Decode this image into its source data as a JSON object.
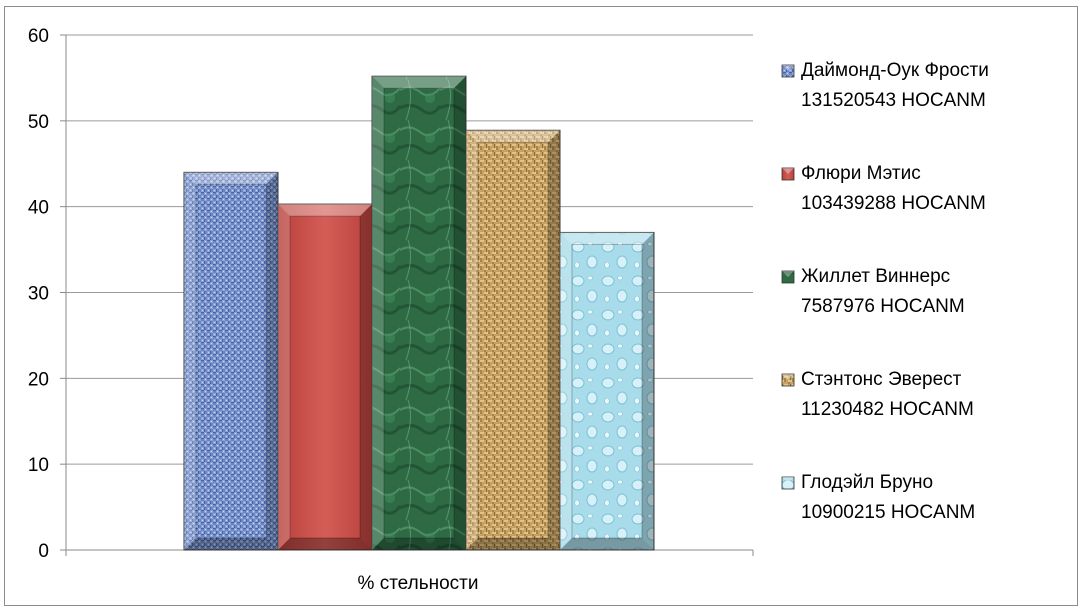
{
  "chart_data": {
    "type": "bar",
    "categories": [
      "% стельности"
    ],
    "xlabel": "% стельности",
    "ylim": [
      0,
      60
    ],
    "yticks": [
      0,
      10,
      20,
      30,
      40,
      50,
      60
    ],
    "grid": true,
    "legend_position": "right",
    "series": [
      {
        "name": "Даймонд-Оук Фрости 131520543 HOCANM",
        "label_lines": [
          "Даймонд-Оук Фрости",
          "131520543 HOCANM"
        ],
        "values": [
          44
        ],
        "color": "#5b78b8",
        "pattern": "woven-blue"
      },
      {
        "name": "Флюри Мэтис 103439288 HOCANM",
        "label_lines": [
          "Флюри Мэтис",
          "103439288 HOCANM"
        ],
        "values": [
          40.3
        ],
        "color": "#c9504a",
        "pattern": "solid-red"
      },
      {
        "name": "Жиллет Виннерс 7587976 HOCANM",
        "label_lines": [
          "Жиллет Виннерс",
          "7587976 HOCANM"
        ],
        "values": [
          55.2
        ],
        "color": "#2d6e45",
        "pattern": "green-marble"
      },
      {
        "name": "Стэнтонс Эверест 11230482 HOCANM",
        "label_lines": [
          "Стэнтонс Эверест",
          "11230482 HOCANM"
        ],
        "values": [
          48.9
        ],
        "color": "#c9a565",
        "pattern": "burlap"
      },
      {
        "name": "Глодэйл Бруно 10900215 HOCANM",
        "label_lines": [
          "Глодэйл Бруно",
          "10900215 HOCANM"
        ],
        "values": [
          37
        ],
        "color": "#a6dcea",
        "pattern": "water-drops"
      }
    ]
  }
}
